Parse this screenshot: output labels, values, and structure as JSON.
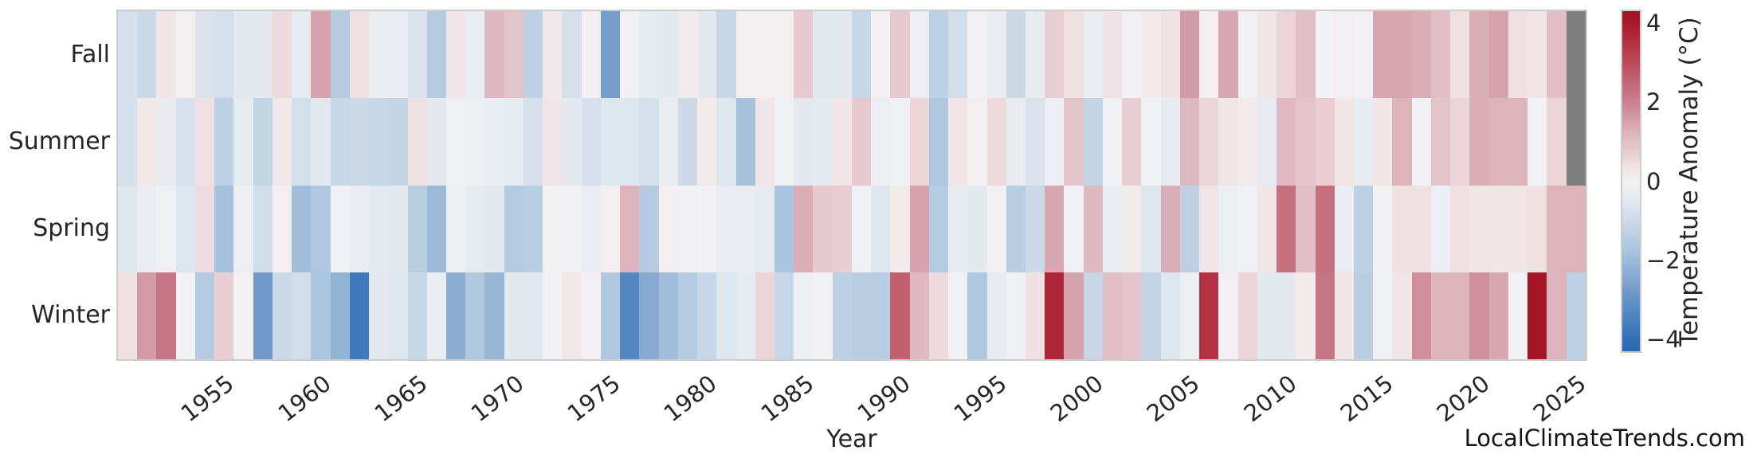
{
  "watermark": "LocalClimateTrends.com",
  "colors": {
    "nan_cell": "#7f7f7f",
    "text": "#262626",
    "watermark_text": "#141414",
    "plot_border": "#cdcdcd",
    "background": "#ffffff"
  },
  "chart_data": {
    "type": "heatmap",
    "title": "",
    "xlabel": "Year",
    "ylabel": "",
    "rows": [
      "Fall",
      "Summer",
      "Spring",
      "Winter"
    ],
    "year_start": 1950,
    "year_end": 2025,
    "xtick_years": [
      1955,
      1960,
      1965,
      1970,
      1975,
      1980,
      1985,
      1990,
      1995,
      2000,
      2005,
      2010,
      2015,
      2020,
      2025
    ],
    "grid": false,
    "series": [
      {
        "name": "Fall",
        "values": [
          -0.8,
          -1.0,
          0.3,
          0.1,
          -0.7,
          -0.8,
          -0.5,
          -0.5,
          0.5,
          -0.4,
          1.5,
          -1.5,
          0.4,
          -0.3,
          -0.3,
          -0.7,
          -1.5,
          0.3,
          -0.3,
          1.1,
          0.9,
          -1.3,
          0.25,
          -0.8,
          0.05,
          -2.7,
          -0.1,
          -0.4,
          -0.5,
          0.2,
          -0.5,
          -1.1,
          0.1,
          0.1,
          0.1,
          0.8,
          -0.5,
          -0.5,
          -1.1,
          0.05,
          0.8,
          -0.2,
          -1.3,
          -0.9,
          -0.05,
          -0.3,
          -1.0,
          -0.4,
          0.7,
          0.4,
          -0.3,
          0.35,
          0.05,
          0.2,
          0.35,
          1.6,
          0.1,
          1.4,
          -0.05,
          0.3,
          0.6,
          1.0,
          0.0,
          0.15,
          0.05,
          1.4,
          1.4,
          1.3,
          1.0,
          0.4,
          1.3,
          1.5,
          0.4,
          0.3,
          1.0,
          null
        ]
      },
      {
        "name": "Summer",
        "values": [
          -0.8,
          0.25,
          -0.35,
          -0.75,
          0.4,
          -1.3,
          -0.4,
          -1.2,
          0.25,
          -0.85,
          -0.55,
          -1.1,
          -1.0,
          -1.1,
          -1.2,
          0.4,
          -0.5,
          -0.1,
          -0.2,
          -0.3,
          -0.4,
          -0.8,
          0.3,
          -0.5,
          -0.8,
          -0.6,
          -0.6,
          -0.8,
          -0.3,
          -1.0,
          0.2,
          -0.6,
          -1.8,
          0.3,
          -0.15,
          -0.5,
          -0.45,
          0.3,
          0.8,
          -0.2,
          -0.1,
          0.6,
          -1.6,
          0.3,
          0.15,
          0.5,
          -0.35,
          -0.7,
          -0.25,
          0.9,
          -1.2,
          -0.1,
          0.7,
          -0.15,
          -0.4,
          1.1,
          0.6,
          0.3,
          0.2,
          -0.4,
          1.1,
          0.9,
          0.7,
          0.3,
          -0.4,
          0.3,
          1.2,
          0.0,
          0.9,
          0.6,
          1.3,
          1.2,
          1.2,
          0.0,
          0.6,
          null
        ]
      },
      {
        "name": "Spring",
        "values": [
          -0.6,
          -0.3,
          -0.15,
          -0.6,
          0.45,
          -1.8,
          -0.2,
          -0.9,
          0.1,
          -1.9,
          -1.6,
          -0.1,
          -0.3,
          -0.45,
          -0.5,
          -1.4,
          -2.0,
          -0.2,
          -0.4,
          -0.5,
          -1.5,
          -1.4,
          -0.05,
          0.0,
          -0.3,
          0.1,
          1.2,
          -1.5,
          0.1,
          -0.05,
          0.0,
          -0.3,
          -0.3,
          -0.4,
          -1.7,
          1.3,
          0.8,
          0.7,
          -0.1,
          -0.6,
          0.2,
          1.5,
          -1.5,
          -0.4,
          -0.5,
          -0.05,
          -1.4,
          -1.0,
          1.4,
          -0.1,
          1.1,
          -0.3,
          0.2,
          -0.6,
          1.3,
          -1.3,
          0.3,
          -0.2,
          -0.1,
          0.3,
          2.3,
          1.0,
          2.3,
          -0.3,
          -1.3,
          0.0,
          0.4,
          0.4,
          -0.2,
          0.4,
          0.3,
          0.3,
          0.3,
          0.4,
          1.2,
          1.2
        ]
      },
      {
        "name": "Winter",
        "values": [
          0.4,
          1.6,
          2.2,
          0.0,
          -1.5,
          0.7,
          0.0,
          -2.8,
          -1.0,
          -0.9,
          -1.7,
          -2.2,
          -3.7,
          -0.5,
          -0.6,
          -1.1,
          -0.3,
          -2.3,
          -1.6,
          -2.1,
          -0.5,
          -0.5,
          0.0,
          0.25,
          0.05,
          -1.6,
          -3.3,
          -2.4,
          -1.9,
          -1.5,
          -1.1,
          -0.6,
          -0.4,
          0.6,
          -1.1,
          -0.2,
          0.0,
          -1.3,
          -1.4,
          -1.4,
          2.6,
          1.1,
          0.5,
          0.0,
          -1.6,
          -0.4,
          -0.1,
          0.4,
          3.7,
          1.5,
          -1.1,
          1.0,
          0.9,
          -1.2,
          -0.6,
          -0.2,
          3.5,
          0.05,
          0.6,
          -0.5,
          -0.5,
          0.2,
          2.2,
          0.3,
          -1.4,
          -0.15,
          0.3,
          1.8,
          1.2,
          1.2,
          1.8,
          1.4,
          0.0,
          4.1,
          1.2,
          -1.3
        ]
      }
    ],
    "colorbar": {
      "title": "Temperature Anomaly (°C)",
      "tick_labels": [
        "4",
        "2",
        "0",
        "−2",
        "−4"
      ],
      "tick_values": [
        4,
        2,
        0,
        -2,
        -4
      ],
      "vmin": -4.3,
      "vmax": 4.3,
      "colorscale": [
        [
          -4.3,
          "#2a69b2"
        ],
        [
          -4.0,
          "#3070b7"
        ],
        [
          -3.0,
          "#6591c5"
        ],
        [
          -2.0,
          "#9dbbd9"
        ],
        [
          -1.5,
          "#b5cbe1"
        ],
        [
          -1.0,
          "#ccdae8"
        ],
        [
          -0.5,
          "#e3e9ef"
        ],
        [
          -0.15,
          "#eef0f3"
        ],
        [
          0.0,
          "#f2f1f3"
        ],
        [
          0.15,
          "#f3eeef"
        ],
        [
          0.5,
          "#eddadd"
        ],
        [
          1.0,
          "#e2bfc6"
        ],
        [
          1.5,
          "#d5a2ad"
        ],
        [
          2.0,
          "#c9808f"
        ],
        [
          3.0,
          "#bb4a59"
        ],
        [
          4.0,
          "#a8182b"
        ],
        [
          4.3,
          "#a11326"
        ]
      ]
    }
  }
}
